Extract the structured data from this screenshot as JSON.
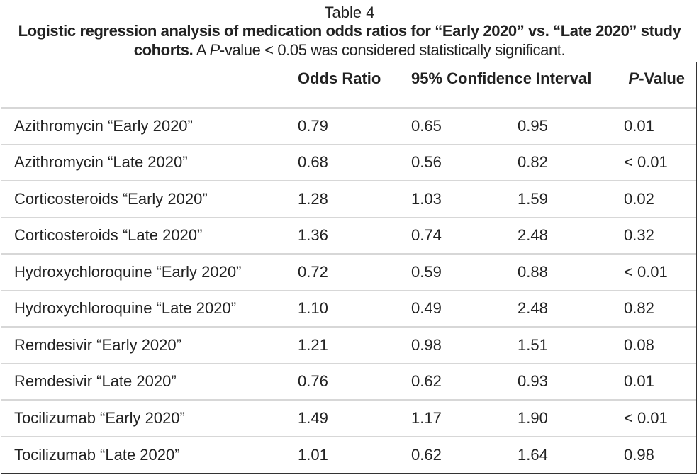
{
  "caption": {
    "label": "Table 4",
    "title_bold": "Logistic regression analysis of medication odds ratios for “Early 2020” vs. “Late 2020” study cohorts.",
    "note_prefix": "A ",
    "note_italic": "P",
    "note_suffix": "-value < 0.05 was considered statistically significant."
  },
  "table": {
    "headers": {
      "medication": "",
      "odds_ratio": "Odds Ratio",
      "ci": "95% Confidence Interval",
      "p_italic": "P",
      "p_suffix": "-Value"
    },
    "rows": [
      {
        "medication": "Azithromycin “Early 2020”",
        "odds_ratio": "0.79",
        "ci_low": "0.65",
        "ci_high": "0.95",
        "p_value": "0.01"
      },
      {
        "medication": "Azithromycin “Late 2020”",
        "odds_ratio": "0.68",
        "ci_low": "0.56",
        "ci_high": "0.82",
        "p_value": "< 0.01"
      },
      {
        "medication": "Corticosteroids “Early 2020”",
        "odds_ratio": "1.28",
        "ci_low": "1.03",
        "ci_high": "1.59",
        "p_value": "0.02"
      },
      {
        "medication": "Corticosteroids “Late 2020”",
        "odds_ratio": "1.36",
        "ci_low": "0.74",
        "ci_high": "2.48",
        "p_value": "0.32"
      },
      {
        "medication": "Hydroxychloroquine “Early 2020”",
        "odds_ratio": "0.72",
        "ci_low": "0.59",
        "ci_high": "0.88",
        "p_value": "< 0.01"
      },
      {
        "medication": "Hydroxychloroquine “Late 2020”",
        "odds_ratio": "1.10",
        "ci_low": "0.49",
        "ci_high": "2.48",
        "p_value": "0.82"
      },
      {
        "medication": "Remdesivir “Early 2020”",
        "odds_ratio": "1.21",
        "ci_low": "0.98",
        "ci_high": "1.51",
        "p_value": "0.08"
      },
      {
        "medication": "Remdesivir “Late 2020”",
        "odds_ratio": "0.76",
        "ci_low": "0.62",
        "ci_high": "0.93",
        "p_value": "0.01"
      },
      {
        "medication": "Tocilizumab “Early 2020”",
        "odds_ratio": "1.49",
        "ci_low": "1.17",
        "ci_high": "1.90",
        "p_value": "< 0.01"
      },
      {
        "medication": "Tocilizumab “Late 2020”",
        "odds_ratio": "1.01",
        "ci_low": "0.62",
        "ci_high": "1.64",
        "p_value": "0.98"
      }
    ]
  }
}
